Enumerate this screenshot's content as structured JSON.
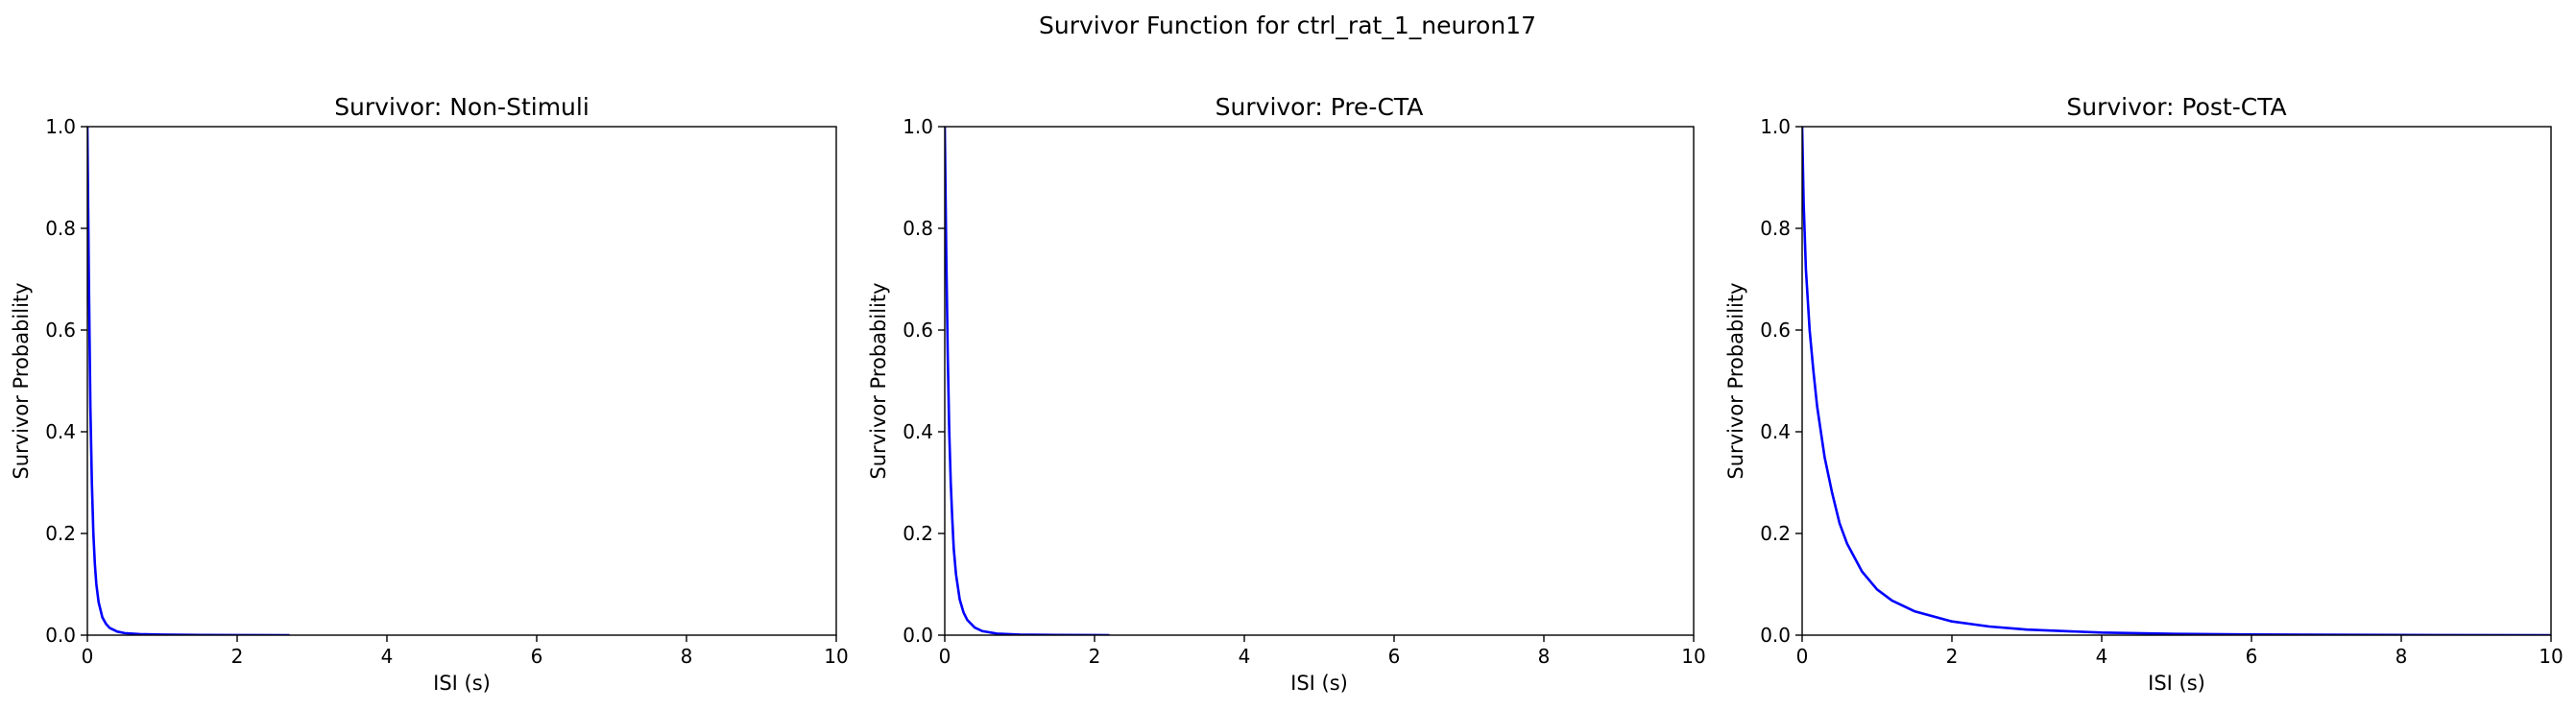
{
  "figure": {
    "title": "Survivor Function for ctrl_rat_1_neuron17"
  },
  "chart_data": [
    {
      "type": "line",
      "title": "Survivor: Non-Stimuli",
      "xlabel": "ISI (s)",
      "ylabel": "Survivor Probability",
      "xlim": [
        0,
        10
      ],
      "ylim": [
        0,
        1
      ],
      "xticks": [
        "0",
        "2",
        "4",
        "6",
        "8",
        "10"
      ],
      "yticks": [
        "0.0",
        "0.2",
        "0.4",
        "0.6",
        "0.8",
        "1.0"
      ],
      "grid": false,
      "series": [
        {
          "color": "#0000ff",
          "x": [
            0,
            0.02,
            0.04,
            0.06,
            0.08,
            0.1,
            0.12,
            0.15,
            0.2,
            0.25,
            0.3,
            0.4,
            0.5,
            0.7,
            1.0,
            1.5,
            2.0,
            2.7
          ],
          "y": [
            1.0,
            0.7,
            0.45,
            0.3,
            0.2,
            0.14,
            0.1,
            0.065,
            0.035,
            0.022,
            0.014,
            0.007,
            0.004,
            0.002,
            0.001,
            0.0005,
            0.0002,
            0.0
          ]
        }
      ]
    },
    {
      "type": "line",
      "title": "Survivor: Pre-CTA",
      "xlabel": "ISI (s)",
      "ylabel": "Survivor Probability",
      "xlim": [
        0,
        10
      ],
      "ylim": [
        0,
        1
      ],
      "xticks": [
        "0",
        "2",
        "4",
        "6",
        "8",
        "10"
      ],
      "yticks": [
        "0.0",
        "0.2",
        "0.4",
        "0.6",
        "0.8",
        "1.0"
      ],
      "grid": false,
      "series": [
        {
          "color": "#0000ff",
          "x": [
            0,
            0.02,
            0.04,
            0.06,
            0.08,
            0.1,
            0.12,
            0.15,
            0.2,
            0.25,
            0.3,
            0.4,
            0.5,
            0.7,
            1.0,
            1.5,
            2.2
          ],
          "y": [
            1.0,
            0.75,
            0.55,
            0.4,
            0.3,
            0.23,
            0.17,
            0.12,
            0.07,
            0.045,
            0.03,
            0.015,
            0.008,
            0.003,
            0.001,
            0.0004,
            0.0
          ]
        }
      ]
    },
    {
      "type": "line",
      "title": "Survivor: Post-CTA",
      "xlabel": "ISI (s)",
      "ylabel": "Survivor Probability",
      "xlim": [
        0,
        10
      ],
      "ylim": [
        0,
        1
      ],
      "xticks": [
        "0",
        "2",
        "4",
        "6",
        "8",
        "10"
      ],
      "yticks": [
        "0.0",
        "0.2",
        "0.4",
        "0.6",
        "0.8",
        "1.0"
      ],
      "grid": false,
      "series": [
        {
          "color": "#0000ff",
          "x": [
            0,
            0.02,
            0.05,
            0.1,
            0.15,
            0.2,
            0.3,
            0.4,
            0.5,
            0.6,
            0.8,
            1.0,
            1.2,
            1.5,
            2.0,
            2.5,
            3.0,
            4.0,
            5.0,
            6.0,
            8.0,
            10.0
          ],
          "y": [
            1.0,
            0.85,
            0.72,
            0.6,
            0.52,
            0.45,
            0.35,
            0.28,
            0.22,
            0.18,
            0.125,
            0.09,
            0.068,
            0.047,
            0.027,
            0.017,
            0.011,
            0.005,
            0.0025,
            0.0012,
            0.0003,
            0.0
          ]
        }
      ]
    }
  ]
}
